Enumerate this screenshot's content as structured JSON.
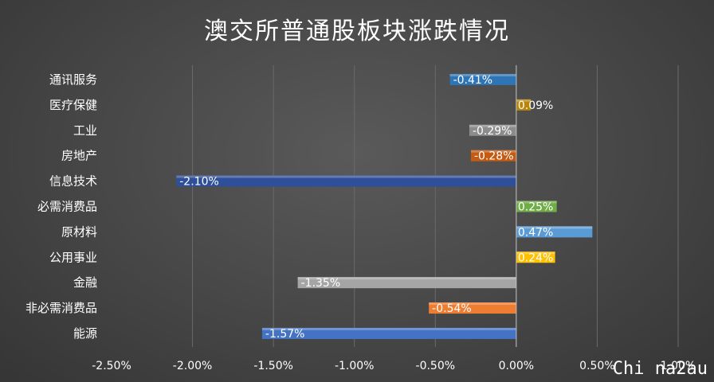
{
  "chart_data": {
    "type": "bar",
    "orientation": "horizontal",
    "title": "澳交所普通股板块涨跌情况",
    "categories": [
      "通讯服务",
      "医疗保健",
      "工业",
      "房地产",
      "信息技术",
      "必需消费品",
      "原材料",
      "公用事业",
      "金融",
      "非必需消费品",
      "能源"
    ],
    "values": [
      -0.41,
      0.09,
      -0.29,
      -0.28,
      -2.1,
      0.25,
      0.47,
      0.24,
      -1.35,
      -0.54,
      -1.57
    ],
    "data_labels": [
      "-0.41%",
      "0.09%",
      "-0.29%",
      "-0.28%",
      "-2.10%",
      "0.25%",
      "0.47%",
      "0.24%",
      "-1.35%",
      "-0.54%",
      "-1.57%"
    ],
    "colors": [
      "#2e75b6",
      "#b8860b",
      "#8c8c8c",
      "#c55a11",
      "#2f4f9a",
      "#70ad47",
      "#5b9bd5",
      "#ffc000",
      "#a5a5a5",
      "#ed7d31",
      "#4472c4"
    ],
    "xlim": [
      -2.5,
      1.0
    ],
    "x_ticks": [
      "-2.50%",
      "-2.00%",
      "-1.50%",
      "-1.00%",
      "-0.50%",
      "0.00%",
      "0.50%",
      "1.00%"
    ],
    "x_tick_values": [
      -2.5,
      -2.0,
      -1.5,
      -1.0,
      -0.5,
      0.0,
      0.5,
      1.0
    ],
    "grid": true
  },
  "watermark": "Chi na2au"
}
